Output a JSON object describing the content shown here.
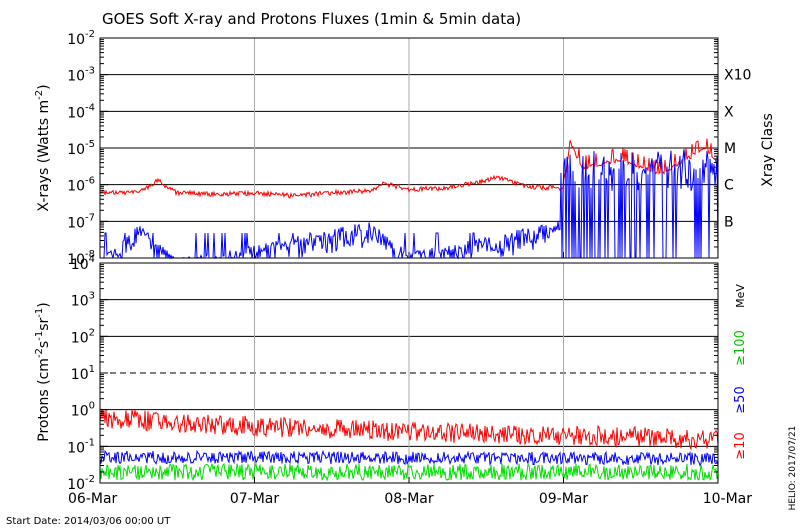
{
  "title": "GOES Soft X-ray and Protons Fluxes   (1min & 5min data)",
  "start_date": "Start Date: 2014/03/06 00:00 UT",
  "credit": "HELIO: 2017/07/21",
  "xray_panel": {
    "ylabel_main": "X-rays (Watts m",
    "ylabel_sup": "-2",
    "ylabel_close": ")",
    "right_label": "Xray Class",
    "ytick_exponents": [
      "-2",
      "-3",
      "-4",
      "-5",
      "-6",
      "-7",
      "-8"
    ],
    "class_labels": [
      "X10",
      "X",
      "M",
      "C",
      "B"
    ]
  },
  "proton_panel": {
    "ylabel_main": "Protons (cm",
    "ylabel_sup1": "-2",
    "ylabel_mid1": "s",
    "ylabel_sup2": "-1",
    "ylabel_mid2": "sr",
    "ylabel_sup3": "-1",
    "ylabel_close": ")",
    "ytick_exponents": [
      "4",
      "3",
      "2",
      "1",
      "0",
      "-1",
      "-2"
    ],
    "unit": "MeV",
    "energy_labels": [
      "≥100",
      "≥50",
      "≥10"
    ]
  },
  "x_ticks": [
    "06-Mar",
    "07-Mar",
    "08-Mar",
    "09-Mar",
    "10-Mar"
  ],
  "chart_data": [
    {
      "type": "line",
      "panel": "xrays",
      "yscale": "log",
      "ylim": [
        1e-08,
        0.01
      ],
      "xlim": [
        "2014-03-06",
        "2014-03-10"
      ],
      "series": [
        {
          "color": "#ff0000",
          "points": [
            [
              "2014-03-06T00:00",
              6e-07
            ],
            [
              "2014-03-06T06:00",
              6e-07
            ],
            [
              "2014-03-06T09:00",
              1.3e-06
            ],
            [
              "2014-03-06T12:00",
              6e-07
            ],
            [
              "2014-03-06T18:00",
              5.5e-07
            ],
            [
              "2014-03-07T00:00",
              6e-07
            ],
            [
              "2014-03-07T06:00",
              5e-07
            ],
            [
              "2014-03-07T12:00",
              6e-07
            ],
            [
              "2014-03-07T18:00",
              7e-07
            ],
            [
              "2014-03-07T20:00",
              1.1e-06
            ],
            [
              "2014-03-08T00:00",
              7.5e-07
            ],
            [
              "2014-03-08T06:00",
              8e-07
            ],
            [
              "2014-03-08T14:00",
              1.6e-06
            ],
            [
              "2014-03-08T18:00",
              9e-07
            ],
            [
              "2014-03-09T00:00",
              8e-07
            ],
            [
              "2014-03-09T01:00",
              1.5e-05
            ],
            [
              "2014-03-09T03:00",
              3e-06
            ],
            [
              "2014-03-09T09:00",
              5e-06
            ],
            [
              "2014-03-09T15:00",
              2e-06
            ],
            [
              "2014-03-09T22:00",
              1e-05
            ],
            [
              "2014-03-10T00:00",
              4e-06
            ]
          ]
        },
        {
          "color": "#0000ff",
          "points": [
            [
              "2014-03-06T00:00",
              1e-08
            ],
            [
              "2014-03-06T06:00",
              8e-08
            ],
            [
              "2014-03-06T12:00",
              1e-08
            ],
            [
              "2014-03-07T18:00",
              1e-07
            ],
            [
              "2014-03-08T00:00",
              1.5e-08
            ],
            [
              "2014-03-08T23:00",
              1e-07
            ],
            [
              "2014-03-09T01:00",
              1e-06
            ],
            [
              "2014-03-09T08:00",
              3e-07
            ],
            [
              "2014-03-09T14:00",
              5e-07
            ],
            [
              "2014-03-09T21:00",
              1e-06
            ],
            [
              "2014-03-10T00:00",
              3e-07
            ]
          ]
        }
      ]
    },
    {
      "type": "line",
      "panel": "protons",
      "yscale": "log",
      "ylim": [
        0.01,
        10000
      ],
      "xlim": [
        "2014-03-06",
        "2014-03-10"
      ],
      "series": [
        {
          "name": "≥10",
          "color": "#ff0000",
          "points": [
            [
              "2014-03-06T00:00",
              0.6
            ],
            [
              "2014-03-06T12:00",
              0.45
            ],
            [
              "2014-03-07T00:00",
              0.35
            ],
            [
              "2014-03-07T12:00",
              0.3
            ],
            [
              "2014-03-08T00:00",
              0.25
            ],
            [
              "2014-03-08T12:00",
              0.22
            ],
            [
              "2014-03-09T00:00",
              0.2
            ],
            [
              "2014-03-09T12:00",
              0.18
            ],
            [
              "2014-03-10T00:00",
              0.15
            ]
          ]
        },
        {
          "name": "≥50",
          "color": "#0000ff",
          "points": [
            [
              "2014-03-06T00:00",
              0.05
            ],
            [
              "2014-03-07T00:00",
              0.05
            ],
            [
              "2014-03-08T00:00",
              0.048
            ],
            [
              "2014-03-09T00:00",
              0.047
            ],
            [
              "2014-03-10T00:00",
              0.045
            ]
          ]
        },
        {
          "name": "≥100",
          "color": "#00dd00",
          "points": [
            [
              "2014-03-06T00:00",
              0.02
            ],
            [
              "2014-03-07T00:00",
              0.02
            ],
            [
              "2014-03-08T00:00",
              0.02
            ],
            [
              "2014-03-09T00:00",
              0.02
            ],
            [
              "2014-03-10T00:00",
              0.02
            ]
          ]
        }
      ]
    }
  ]
}
